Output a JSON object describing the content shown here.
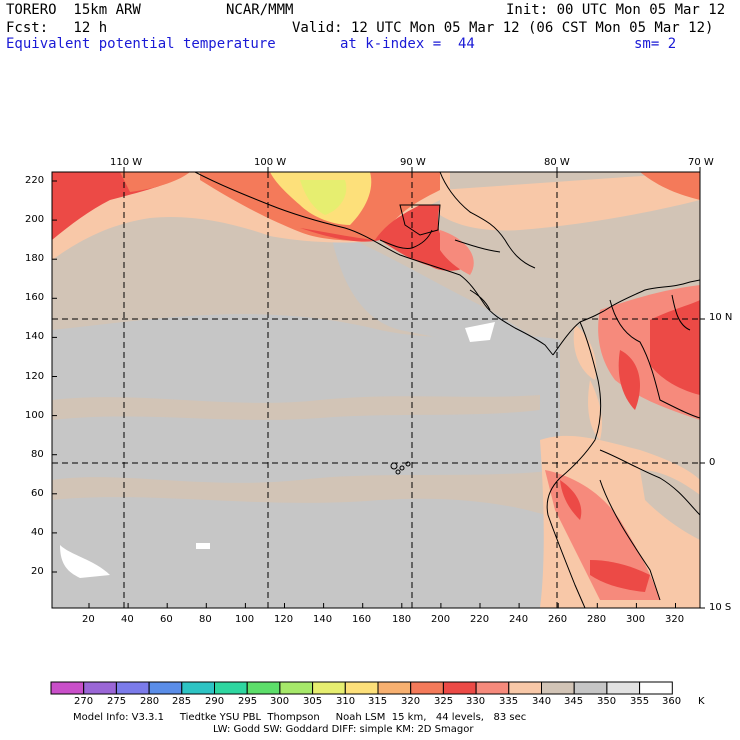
{
  "header": {
    "model_name": "TORERO  15km ARW",
    "center": "NCAR/MMM",
    "init": "Init: 00 UTC Mon 05 Mar 12",
    "fcst": "Fcst:   12 h",
    "valid": "Valid: 12 UTC Mon 05 Mar 12 (06 CST Mon 05 Mar 12)",
    "field": "Equivalent potential temperature",
    "level": "at k-index =  44",
    "smooth": "sm= 2"
  },
  "map": {
    "lon_labels": [
      "110 W",
      "100 W",
      "90 W",
      "80 W",
      "70 W"
    ],
    "lat_labels": [
      "10 N",
      "0",
      "10 S"
    ],
    "y_ticks": [
      "220",
      "200",
      "180",
      "160",
      "140",
      "120",
      "100",
      "80",
      "60",
      "40",
      "20"
    ],
    "x_ticks": [
      "20",
      "40",
      "60",
      "80",
      "100",
      "120",
      "140",
      "160",
      "180",
      "200",
      "220",
      "240",
      "260",
      "280",
      "300",
      "320"
    ]
  },
  "colorbar": {
    "labels": [
      "270",
      "275",
      "280",
      "285",
      "290",
      "295",
      "300",
      "305",
      "310",
      "315",
      "320",
      "325",
      "330",
      "335",
      "340",
      "345",
      "350",
      "355",
      "360"
    ],
    "unit": "K",
    "colors": [
      "#c94fc9",
      "#9a66d6",
      "#7b7bea",
      "#5a8de8",
      "#2ec4c4",
      "#2ed6a0",
      "#5cde6a",
      "#a6e86a",
      "#e6ee70",
      "#fde07a",
      "#f7b070",
      "#f47a5a",
      "#ec4a46",
      "#f68a7c",
      "#f8c8a8",
      "#d2c4b6",
      "#c6c6c6",
      "#e2e2e2",
      "#ffffff"
    ]
  },
  "footer": {
    "line1": "Model Info: V3.3.1     Tiedtke YSU PBL  Thompson     Noah LSM  15 km,   44 levels,   83 sec",
    "line2": "LW: Godd SW: Goddard DIFF: simple KM: 2D Smagor"
  }
}
